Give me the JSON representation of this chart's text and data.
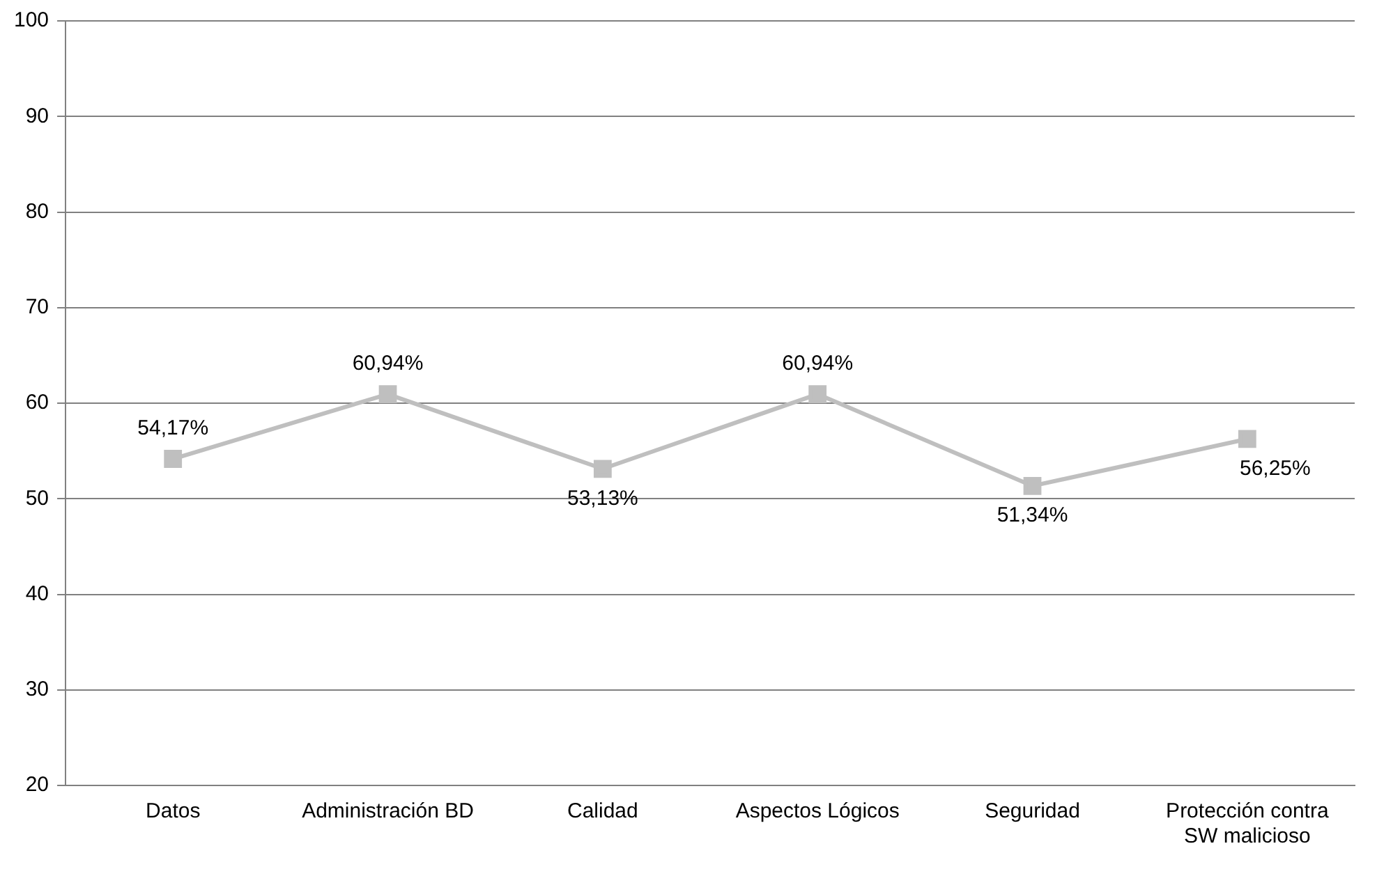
{
  "chart_data": {
    "type": "line",
    "categories": [
      "Datos",
      "Administración BD",
      "Calidad",
      "Aspectos Lógicos",
      "Seguridad",
      "Protección contra SW malicioso"
    ],
    "series": [
      {
        "color": "#bfbfbf",
        "values": [
          54.17,
          60.94,
          53.13,
          60.94,
          51.34,
          56.25
        ],
        "value_labels": [
          "54,17%",
          "60,94%",
          "53,13%",
          "60,94%",
          "51,34%",
          "56,25%"
        ]
      }
    ],
    "ylim": [
      20,
      100
    ],
    "yticks": [
      20,
      30,
      40,
      50,
      60,
      70,
      80,
      90,
      100
    ],
    "grid": "y",
    "legend": false,
    "marker": "square",
    "line_style": "solid"
  }
}
